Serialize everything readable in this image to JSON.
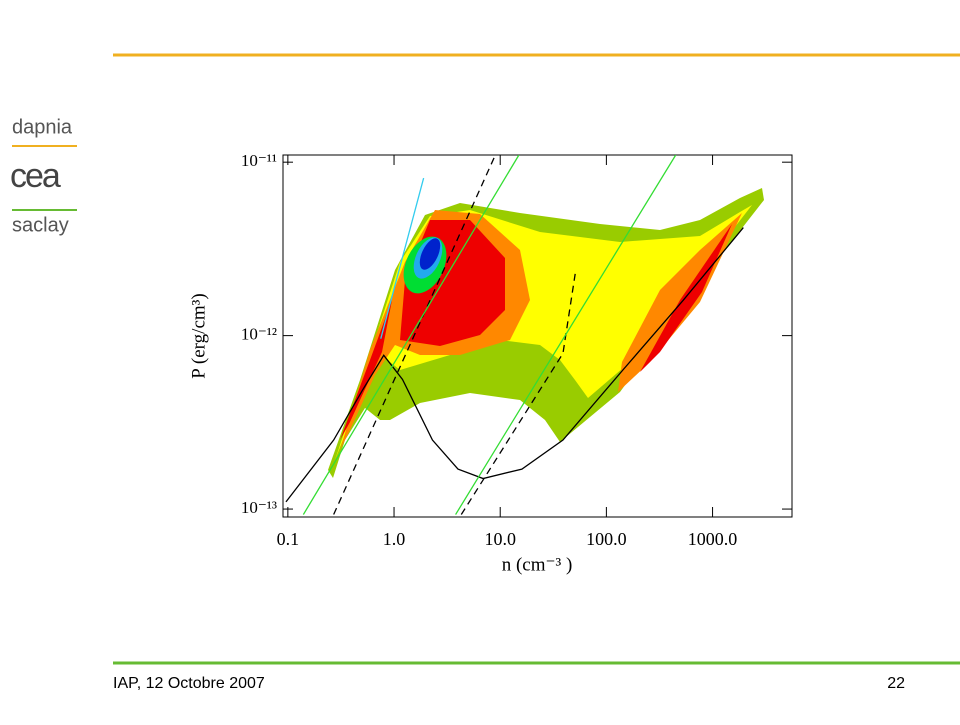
{
  "slide": {
    "logo": {
      "top": "dapnia",
      "middle": "cea",
      "bottom": "saclay"
    },
    "footer": "IAP, 12 Octobre 2007",
    "page_number": "22"
  },
  "chart_data": {
    "type": "line",
    "xlabel": "n (cm⁻³ )",
    "ylabel": "P (erg/cm³)",
    "xlog": true,
    "ylog": true,
    "xlim": [
      0.09,
      5600
    ],
    "ylim": [
      9e-14,
      1.1e-11
    ],
    "xticks": [
      0.1,
      {
        "value": 1,
        "label": "1.0"
      },
      {
        "value": 10,
        "label": "10.0"
      },
      {
        "value": 100,
        "label": "100.0"
      },
      {
        "value": 1000,
        "label": "1000.0"
      }
    ],
    "yticks": [
      {
        "value": 1e-13,
        "label": "10⁻¹³"
      },
      {
        "value": 1e-12,
        "label": "10⁻¹²"
      },
      {
        "value": 1e-11,
        "label": "10⁻¹¹"
      }
    ],
    "series": [
      {
        "color": "#000000",
        "dash": false,
        "x": [
          0.096,
          0.27,
          0.51,
          0.8,
          1.2,
          2.3,
          4.0,
          6.9,
          16,
          39,
          145,
          530,
          1950
        ],
        "values": [
          1.1e-13,
          2.5e-13,
          4.9e-13,
          7.7e-13,
          5.6e-13,
          2.5e-13,
          1.7e-13,
          1.5e-13,
          1.7e-13,
          2.5e-13,
          6.4e-13,
          1.6e-12,
          4.2e-12
        ]
      },
      {
        "color": "#000000",
        "dash": true,
        "x": [
          0.27,
          9
        ],
        "values": [
          9.3e-14,
          1.1e-11
        ]
      },
      {
        "color": "#000000",
        "dash": true,
        "x": [
          4.3,
          39,
          51
        ],
        "values": [
          9.3e-14,
          7.9e-13,
          2.3e-12
        ]
      },
      {
        "color": "#33dd33",
        "dash": false,
        "x": [
          0.14,
          15
        ],
        "values": [
          9.3e-14,
          1.1e-11
        ]
      },
      {
        "color": "#33dd33",
        "dash": false,
        "x": [
          3.8,
          450
        ],
        "values": [
          9.3e-14,
          1.1e-11
        ]
      },
      {
        "color": "#33ccee",
        "dash": false,
        "x": [
          0.75,
          1.9
        ],
        "values": [
          9.6e-13,
          8.1e-12
        ]
      }
    ]
  }
}
